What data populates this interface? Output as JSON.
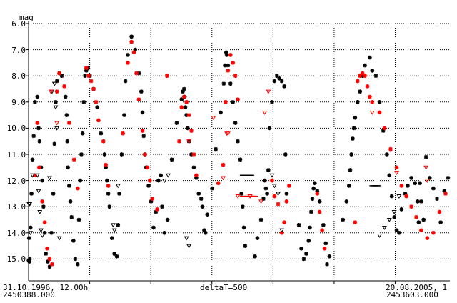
{
  "chart_data": {
    "type": "scatter",
    "ylabel": "mag",
    "y_inverted": true,
    "ylim": [
      6.0,
      15.8
    ],
    "xlim": [
      2450388.0,
      2453835.0
    ],
    "y_ticks": [
      "6.0",
      "7.0",
      "8.0",
      "9.0",
      "10.0",
      "11.0",
      "12.0",
      "13.0",
      "14.0",
      "15.0"
    ],
    "grid": true,
    "x_start_date": "31.10.1996, 12.00h",
    "x_start_jd": "2450388.000",
    "x_end_date": "20.08.2005, 1",
    "x_end_jd": "2453603.000",
    "delta_label": "deltaT=500",
    "series": [
      {
        "marker": "star",
        "color": "#000000",
        "x": [
          2450389,
          2450392,
          2450395,
          2450398,
          2450404,
          2450412,
          2450420,
          2450430,
          2450440,
          2450460,
          2450470,
          2450478,
          2450490,
          2450500,
          2450510,
          2450520,
          2450530,
          2450545,
          2450560,
          2450575,
          2450590,
          2450600,
          2450610,
          2450620,
          2450640,
          2450660,
          2450690,
          2450700,
          2450705,
          2450710,
          2450720,
          2450730,
          2450740,
          2450755,
          2450770,
          2450790,
          2450800,
          2450810,
          2450820,
          2450830,
          2450840,
          2450850,
          2450860,
          2450875,
          2450890,
          2450920,
          2450950,
          2450980,
          2451010,
          2451020,
          2451030,
          2451040,
          2451050,
          2451070,
          2451090,
          2451110,
          2451120,
          2451130,
          2451150,
          2451170,
          2451180,
          2451200,
          2451230,
          2451260,
          2451290,
          2451310,
          2451320,
          2451330,
          2451340,
          2451350,
          2451370,
          2451390,
          2451410,
          2451430,
          2451450,
          2451470,
          2451480,
          2451500,
          2451525,
          2451560,
          2451600,
          2451640,
          2451650,
          2451660,
          2451665,
          2451670,
          2451680,
          2451690,
          2451700,
          2451720,
          2451740,
          2451760,
          2451780,
          2451800,
          2451810,
          2451825,
          2451835,
          2451850,
          2451890,
          2451920,
          2451960,
          2451985,
          2451995,
          2452005,
          2452010,
          2452020,
          2452040,
          2452060,
          2452080,
          2452100,
          2452120,
          2452130,
          2452140,
          2452150,
          2452160,
          2452240,
          2452260,
          2452290,
          2452310,
          2452320,
          2452330,
          2452340,
          2452350,
          2452360,
          2452380,
          2452400,
          2452420,
          2452440,
          2452460,
          2452480,
          2452490,
          2452500,
          2452600,
          2452620,
          2452640,
          2452660,
          2452680,
          2452690,
          2452700,
          2452710,
          2452720,
          2452730,
          2452750,
          2452770,
          2452800,
          2452820,
          2452830,
          2452850,
          2452960,
          2452990,
          2453010,
          2453020,
          2453030,
          2453040,
          2453050,
          2453060,
          2453080,
          2453100,
          2453120,
          2453140,
          2453180,
          2453200,
          2453230,
          2453260,
          2453290,
          2453320,
          2453340,
          2453360,
          2453380,
          2453400,
          2453420,
          2453440,
          2453470,
          2453490,
          2453520,
          2453550,
          2453570,
          2453580,
          2453590,
          2453600,
          2453620,
          2453640,
          2453670,
          2453700,
          2453730,
          2453760,
          2453790,
          2453820
        ],
        "y": [
          15.05,
          14.2,
          15.1,
          15.0,
          13.8,
          12.5,
          11.2,
          10.3,
          9.0,
          8.8,
          10.0,
          10.5,
          11.5,
          12.0,
          13.0,
          14.0,
          14.8,
          15.1,
          15.3,
          14.0,
          12.5,
          10.6,
          9.0,
          8.2,
          7.9,
          8.0,
          8.8,
          9.5,
          10.5,
          11.5,
          12.2,
          12.8,
          13.4,
          14.3,
          15.0,
          15.2,
          13.5,
          12.0,
          11.0,
          10.2,
          9.0,
          8.0,
          7.8,
          7.7,
          8.0,
          8.5,
          9.2,
          10.2,
          11.0,
          11.5,
          12.0,
          12.5,
          13.0,
          14.2,
          14.8,
          14.9,
          13.7,
          12.5,
          11.0,
          9.5,
          8.2,
          7.2,
          6.5,
          7.0,
          7.9,
          8.6,
          9.4,
          10.3,
          11.0,
          11.5,
          12.2,
          12.8,
          13.8,
          13.2,
          12.0,
          11.8,
          13.0,
          14.0,
          13.5,
          11.2,
          9.8,
          8.9,
          8.6,
          8.5,
          8.8,
          9.2,
          9.5,
          10.0,
          10.5,
          11.0,
          11.5,
          11.9,
          12.5,
          12.7,
          13.0,
          13.9,
          14.0,
          13.3,
          12.3,
          10.8,
          9.4,
          8.3,
          7.6,
          7.1,
          7.2,
          7.6,
          8.3,
          9.0,
          9.8,
          10.5,
          11.2,
          12.5,
          13.0,
          13.8,
          14.5,
          14.9,
          14.2,
          13.5,
          12.7,
          12.0,
          12.3,
          12.5,
          11.6,
          10.0,
          9.0,
          8.2,
          8.0,
          8.1,
          8.2,
          8.4,
          11.0,
          12.5,
          13.7,
          14.6,
          15.0,
          14.8,
          14.3,
          13.8,
          13.2,
          12.7,
          12.3,
          12.1,
          12.4,
          12.8,
          13.7,
          14.4,
          15.2,
          14.9,
          13.5,
          12.8,
          12.2,
          11.6,
          11.0,
          10.4,
          10.0,
          9.6,
          9.0,
          8.6,
          8.0,
          7.6,
          7.3,
          7.8,
          8.0,
          9.0,
          10.1,
          11.0,
          11.8,
          12.6,
          13.4,
          13.9,
          14.0,
          13.1,
          12.5,
          12.2,
          11.9,
          12.1,
          12.8,
          13.6,
          12.1,
          12.8,
          13.5,
          11.1,
          11.9,
          12.3,
          12.7,
          13.6,
          12.4,
          11.9
        ]
      },
      {
        "marker": "star",
        "color": "#ff0000",
        "x": [
          2450440,
          2450460,
          2450475,
          2450500,
          2450520,
          2450540,
          2450560,
          2450580,
          2450620,
          2450640,
          2450680,
          2450720,
          2450760,
          2450790,
          2450860,
          2450880,
          2450900,
          2450920,
          2450940,
          2450960,
          2451000,
          2451020,
          2451040,
          2451160,
          2451200,
          2451230,
          2451250,
          2451270,
          2451290,
          2451320,
          2451340,
          2451360,
          2451380,
          2451400,
          2451440,
          2451520,
          2451620,
          2451640,
          2451660,
          2451680,
          2451700,
          2451720,
          2451740,
          2451760,
          2451940,
          2451980,
          2452000,
          2452020,
          2452040,
          2452060,
          2452080,
          2452100,
          2452380,
          2452400,
          2452430,
          2452460,
          2452480,
          2452500,
          2452520,
          2452750,
          2452770,
          2452790,
          2452810,
          2453060,
          2453080,
          2453100,
          2453120,
          2453140,
          2453160,
          2453180,
          2453200,
          2453260,
          2453300,
          2453350,
          2453400,
          2453440,
          2453480,
          2453520,
          2453560,
          2453600,
          2453650,
          2453700,
          2453750,
          2453800
        ],
        "y": [
          11.8,
          9.8,
          11.5,
          12.8,
          13.6,
          14.6,
          15.0,
          15.2,
          8.6,
          7.9,
          8.4,
          9.8,
          11.2,
          12.3,
          7.7,
          8.0,
          8.2,
          8.5,
          9.0,
          9.7,
          10.5,
          11.4,
          12.2,
          10.2,
          7.5,
          6.7,
          7.1,
          7.9,
          8.9,
          10.1,
          11.0,
          11.5,
          12.0,
          12.7,
          13.1,
          8.0,
          10.5,
          9.2,
          8.8,
          9.0,
          9.5,
          10.1,
          11.0,
          11.8,
          12.1,
          11.4,
          9.0,
          7.8,
          7.2,
          7.5,
          8.0,
          8.9,
          12.0,
          12.6,
          12.9,
          14.0,
          13.6,
          12.8,
          12.2,
          12.5,
          13.2,
          13.9,
          14.6,
          13.6,
          8.2,
          8.0,
          7.9,
          8.0,
          8.4,
          8.8,
          9.0,
          9.4,
          10.0,
          10.8,
          11.5,
          12.2,
          12.6,
          13.0,
          13.4,
          13.9,
          14.2,
          14.0,
          13.2,
          12.5
        ]
      },
      {
        "marker": "triangle",
        "color": "#000000",
        "x": [
          2450392,
          2450398,
          2450404,
          2450420,
          2450460,
          2450470,
          2450480,
          2450490,
          2450500,
          2450560,
          2450580,
          2450600,
          2450610,
          2450620,
          2450640,
          2451080,
          2451090,
          2451120,
          2451500,
          2451530,
          2451680,
          2451700,
          2452380,
          2452400,
          2452430,
          2452460,
          2453260,
          2453300,
          2453340,
          2453380,
          2453420
        ],
        "y": [
          12.9,
          12.9,
          14.0,
          11.8,
          11.8,
          12.4,
          13.2,
          13.9,
          14.1,
          11.9,
          8.6,
          8.3,
          9.2,
          10.0,
          14.2,
          13.7,
          13.9,
          12.2,
          12.0,
          11.8,
          14.2,
          14.5,
          11.8,
          12.2,
          12.5,
          13.9,
          14.1,
          13.8,
          13.5,
          13.2,
          12.6
        ]
      },
      {
        "marker": "triangle",
        "color": "#ff0000",
        "x": [
          2450570,
          2450620,
          2451700,
          2451900,
          2451980,
          2452010,
          2452020,
          2452100,
          2452200,
          2452290,
          2452320,
          2452350,
          2453200,
          2453400,
          2453640,
          2453650
        ],
        "y": [
          8.6,
          9.8,
          10.5,
          9.6,
          11.9,
          10.2,
          10.2,
          12.6,
          12.6,
          12.8,
          9.4,
          8.6,
          9.4,
          11.7,
          11.5,
          12.0
        ]
      },
      {
        "marker": "dash",
        "color": "#000000",
        "x": [
          2452140,
          2452150,
          2452160,
          2452170,
          2452180,
          2452190,
          2452200,
          2452210,
          2453200,
          2453210,
          2453220,
          2453230,
          2453240,
          2453250
        ],
        "y": [
          11.8,
          11.8,
          11.8,
          11.8,
          11.8,
          11.8,
          11.8,
          11.8,
          12.2,
          12.2,
          12.2,
          12.2,
          12.2,
          12.2
        ]
      },
      {
        "marker": "dash",
        "color": "#ff0000",
        "x": [
          2452140,
          2452160,
          2452180,
          2452200,
          2452220,
          2452240
        ],
        "y": [
          12.6,
          12.6,
          12.6,
          12.6,
          12.6,
          12.6
        ]
      }
    ]
  }
}
